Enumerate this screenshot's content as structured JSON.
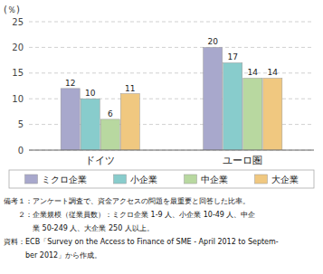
{
  "chart_data": {
    "type": "bar",
    "y_label": "(％)",
    "categories": [
      "ドイツ",
      "ユーロ圏"
    ],
    "series": [
      {
        "name": "ミクロ企業",
        "color": "#a8a8cc",
        "values": [
          12,
          20
        ]
      },
      {
        "name": "小企業",
        "color": "#88cccc",
        "values": [
          10,
          17
        ]
      },
      {
        "name": "中企業",
        "color": "#b8d8a0",
        "values": [
          6,
          14
        ]
      },
      {
        "name": "大企業",
        "color": "#f0c880",
        "values": [
          11,
          14
        ]
      }
    ],
    "ylim": [
      0,
      25
    ],
    "yticks": [
      0,
      5,
      10,
      15,
      20,
      25
    ],
    "grid": true,
    "data_labels": true,
    "legend": "bottom",
    "annotations": [
      "備考１：アンケート調査で、資金アクセスの問題を最重要と回答した比率。",
      "　　２：企業規模（従業員数）：ミクロ企業 1-9 人、小企業 10-49 人、中企",
      "　　　　業 50-249 人、大企業 250 人以上。",
      "資料：ECB「Survey on the Access to Finance of SME - April 2012 to Septem-",
      "　　　ber 2012」から作成。"
    ]
  }
}
